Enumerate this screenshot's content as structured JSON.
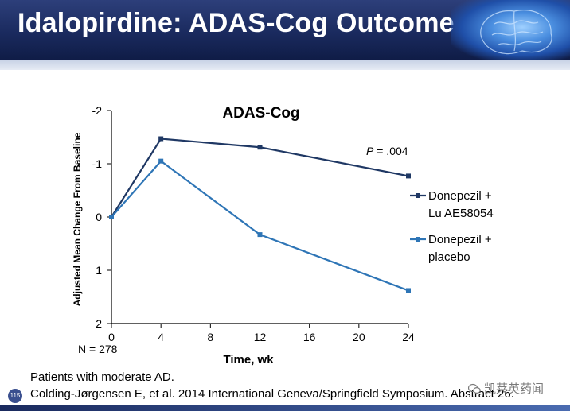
{
  "slide": {
    "title": "Idalopirdine: ADAS-Cog Outcome",
    "footnote": "Patients with moderate AD.",
    "citation": "Colding-Jørgensen E, et al. 2014 International Geneva/Springfield Symposium. Abstract 26.",
    "slide_number": "115",
    "watermark": "凯莱英药闻"
  },
  "chart_data": {
    "type": "line",
    "title": "ADAS-Cog",
    "xlabel": "Time, wk",
    "ylabel": "Adjusted Mean Change From Baseline",
    "x_ticks": [
      0,
      4,
      8,
      12,
      16,
      20,
      24
    ],
    "y_ticks": [
      -2,
      -1,
      0,
      1,
      2
    ],
    "xlim": [
      0,
      24
    ],
    "ylim": [
      -2,
      2
    ],
    "y_inverted": true,
    "grid": false,
    "annotation_prefix": "P",
    "annotation_value": " = .004",
    "n_label": "N = 278",
    "legend_position": "right",
    "series": [
      {
        "name_line1": "Donepezil +",
        "name_line2": "Lu AE58054",
        "color": "#1f3864",
        "x": [
          0,
          4,
          12,
          24
        ],
        "y": [
          0,
          -1.47,
          -1.31,
          -0.77
        ]
      },
      {
        "name_line1": "Donepezil +",
        "name_line2": "placebo",
        "color": "#2e75b6",
        "x": [
          0,
          4,
          12,
          24
        ],
        "y": [
          0,
          -1.05,
          0.33,
          1.38
        ]
      }
    ]
  }
}
